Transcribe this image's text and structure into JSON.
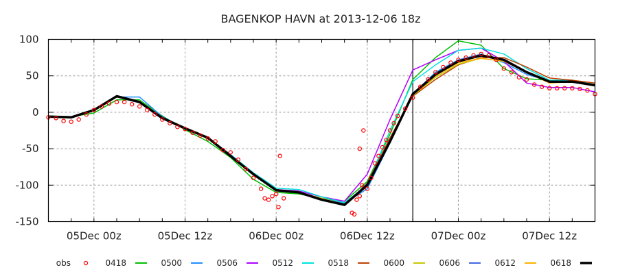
{
  "chart_data": {
    "type": "line",
    "title": "BAGENKOP HAVN at 2013-12-06 18z",
    "xlabel": "",
    "ylabel": "",
    "x_unit": "hours since 04Dec 18z",
    "xlim": [
      0,
      72
    ],
    "ylim": [
      -150,
      100
    ],
    "yticks": [
      100,
      50,
      0,
      -50,
      -100,
      -150
    ],
    "xticks": [
      {
        "h": 6,
        "label": "05Dec 00z"
      },
      {
        "h": 18,
        "label": "05Dec 12z"
      },
      {
        "h": 30,
        "label": "06Dec 00z"
      },
      {
        "h": 42,
        "label": "06Dec 12z"
      },
      {
        "h": 54,
        "label": "07Dec 00z"
      },
      {
        "h": 66,
        "label": "07Dec 12z"
      }
    ],
    "minor_tick_step_hours": 3,
    "grid": true,
    "analysis_time_hour": 48,
    "legend_position": "bottom",
    "x": [
      0,
      3,
      6,
      9,
      12,
      15,
      18,
      21,
      24,
      27,
      30,
      33,
      36,
      39,
      42,
      45,
      48,
      51,
      54,
      57,
      60,
      63,
      66,
      69,
      72
    ],
    "obs": {
      "name": "obs",
      "color": "#ff0000",
      "marker": "circle",
      "points": [
        [
          0,
          -7
        ],
        [
          1,
          -8
        ],
        [
          2,
          -12
        ],
        [
          3,
          -13
        ],
        [
          4,
          -10
        ],
        [
          5,
          -3
        ],
        [
          6,
          3
        ],
        [
          7,
          8
        ],
        [
          8,
          12
        ],
        [
          9,
          14
        ],
        [
          10,
          14
        ],
        [
          11,
          11
        ],
        [
          12,
          8
        ],
        [
          13,
          3
        ],
        [
          14,
          -3
        ],
        [
          15,
          -10
        ],
        [
          16,
          -15
        ],
        [
          17,
          -20
        ],
        [
          18,
          -23
        ],
        [
          19,
          -28
        ],
        [
          20,
          -32
        ],
        [
          21,
          -36
        ],
        [
          22,
          -40
        ],
        [
          23,
          -52
        ],
        [
          24,
          -55
        ],
        [
          25,
          -65
        ],
        [
          26,
          -78
        ],
        [
          27,
          -90
        ],
        [
          28,
          -105
        ],
        [
          28.5,
          -118
        ],
        [
          29,
          -120
        ],
        [
          29.5,
          -115
        ],
        [
          30,
          -112
        ],
        [
          30.3,
          -130
        ],
        [
          30.5,
          -60
        ],
        [
          31,
          -118
        ],
        [
          40,
          -138
        ],
        [
          40.3,
          -140
        ],
        [
          40.6,
          -120
        ],
        [
          41,
          -115
        ],
        [
          41.3,
          -100
        ],
        [
          41,
          -50
        ],
        [
          41.5,
          -25
        ],
        [
          42,
          -105
        ],
        [
          42.5,
          -90
        ],
        [
          43,
          -70
        ],
        [
          43.5,
          -60
        ],
        [
          44,
          -48
        ],
        [
          44.5,
          -38
        ],
        [
          45,
          -25
        ],
        [
          45.5,
          -15
        ],
        [
          46,
          -5
        ],
        [
          47,
          5
        ],
        [
          48,
          20
        ],
        [
          49,
          35
        ],
        [
          50,
          45
        ],
        [
          51,
          55
        ],
        [
          52,
          62
        ],
        [
          53,
          68
        ],
        [
          54,
          72
        ],
        [
          55,
          75
        ],
        [
          56,
          78
        ],
        [
          57,
          80
        ],
        [
          58,
          78
        ],
        [
          59,
          72
        ],
        [
          60,
          60
        ],
        [
          61,
          55
        ],
        [
          62,
          48
        ],
        [
          63,
          45
        ],
        [
          64,
          38
        ],
        [
          65,
          35
        ],
        [
          66,
          33
        ],
        [
          67,
          33
        ],
        [
          68,
          33
        ],
        [
          69,
          33
        ],
        [
          70,
          32
        ],
        [
          71,
          30
        ],
        [
          72,
          25
        ]
      ]
    },
    "series": [
      {
        "name": "0418",
        "color": "#00c000",
        "width": 1.5,
        "start": 0,
        "values": [
          -5,
          -6,
          -1,
          17,
          17,
          -5,
          -24,
          -40,
          -62,
          -92,
          -110,
          -112,
          -118,
          -122,
          -95,
          -30,
          45,
          75,
          98,
          92,
          60,
          46,
          44,
          44,
          38
        ]
      },
      {
        "name": "0500",
        "color": "#1e90ff",
        "width": 1.5,
        "start": 6,
        "values": [
          null,
          null,
          3,
          21,
          21,
          -6,
          -22,
          -35,
          -58,
          -85,
          -107,
          -110,
          -118,
          -125,
          -105,
          -42,
          25,
          55,
          72,
          80,
          68,
          52,
          43,
          42,
          38
        ]
      },
      {
        "name": "0506",
        "color": "#b000ff",
        "width": 1.5,
        "start": 12,
        "values": [
          null,
          null,
          null,
          null,
          14,
          -7,
          -22,
          -35,
          -58,
          -85,
          -106,
          -108,
          -116,
          -122,
          -85,
          -10,
          58,
          72,
          85,
          88,
          70,
          40,
          34,
          34,
          28
        ]
      },
      {
        "name": "0512",
        "color": "#00e0e0",
        "width": 1.5,
        "start": 18,
        "values": [
          null,
          null,
          null,
          null,
          null,
          null,
          -22,
          -35,
          -58,
          -83,
          -104,
          -106,
          -116,
          -124,
          -100,
          -25,
          42,
          65,
          85,
          88,
          80,
          60,
          44,
          44,
          38
        ]
      },
      {
        "name": "0518",
        "color": "#c04000",
        "width": 1.5,
        "start": 24,
        "values": [
          null,
          null,
          null,
          null,
          null,
          null,
          null,
          null,
          -60,
          -85,
          -106,
          -110,
          -118,
          -128,
          -97,
          -35,
          22,
          45,
          65,
          75,
          75,
          62,
          47,
          44,
          40
        ]
      },
      {
        "name": "0600",
        "color": "#c8c800",
        "width": 1.5,
        "start": 30,
        "values": [
          null,
          null,
          null,
          null,
          null,
          null,
          null,
          null,
          null,
          null,
          -108,
          -110,
          -118,
          -126,
          -100,
          -40,
          23,
          48,
          66,
          74,
          70,
          55,
          42,
          42,
          38
        ]
      },
      {
        "name": "0606",
        "color": "#4169e1",
        "width": 1.5,
        "start": 36,
        "values": [
          null,
          null,
          null,
          null,
          null,
          null,
          null,
          null,
          null,
          null,
          null,
          null,
          -119,
          -126,
          -98,
          -38,
          26,
          52,
          70,
          78,
          70,
          55,
          42,
          42,
          38
        ]
      },
      {
        "name": "0612",
        "color": "#ffb000",
        "width": 1.5,
        "start": 42,
        "values": [
          null,
          null,
          null,
          null,
          null,
          null,
          null,
          null,
          null,
          null,
          null,
          null,
          null,
          null,
          -98,
          -40,
          24,
          50,
          68,
          74,
          70,
          55,
          40,
          42,
          38
        ]
      },
      {
        "name": "0618",
        "color": "#000000",
        "width": 3.5,
        "start": 0,
        "values": [
          -6,
          -7,
          3,
          22,
          14,
          -8,
          -22,
          -35,
          -60,
          -85,
          -107,
          -110,
          -120,
          -127,
          -100,
          -40,
          25,
          52,
          70,
          78,
          72,
          55,
          42,
          42,
          37
        ]
      }
    ]
  }
}
